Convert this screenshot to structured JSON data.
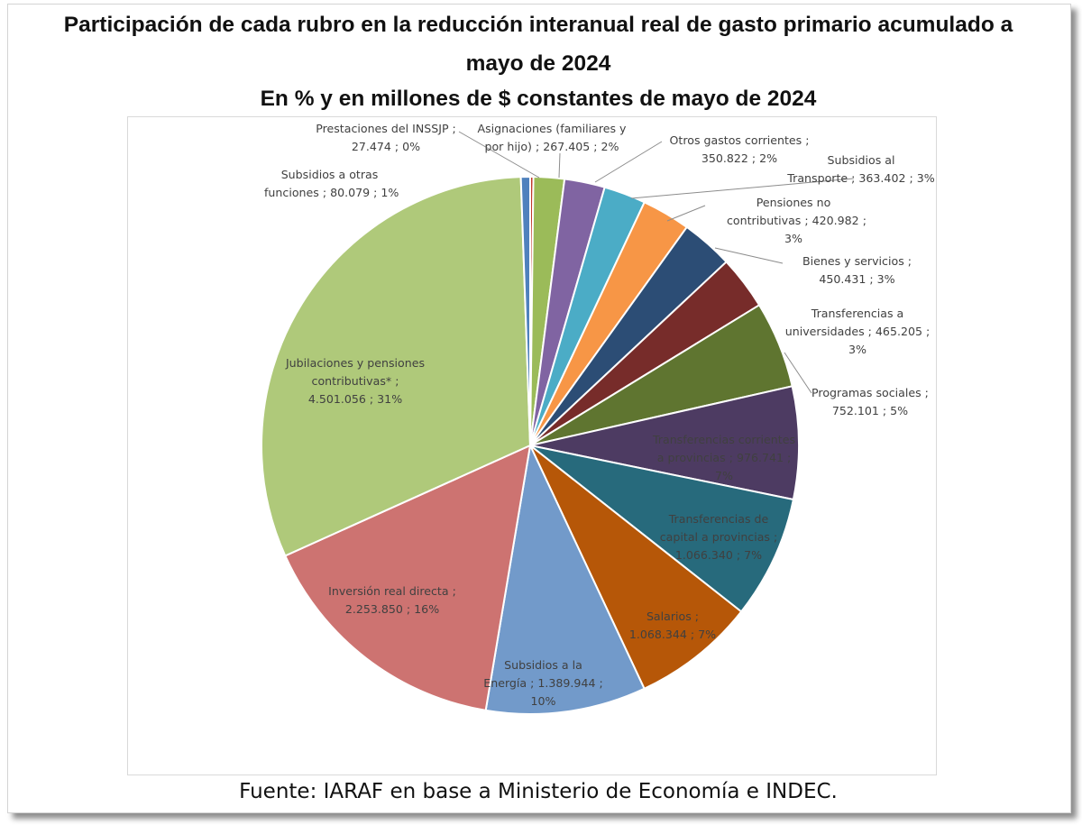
{
  "title": {
    "line1": "Participación de cada rubro en la reducción interanual real de gasto primario acumulado a",
    "line2": "mayo de 2024",
    "line3": "En % y en millones de $ constantes de mayo de 2024"
  },
  "source": "Fuente: IARAF en base a Ministerio de Economía e INDEC.",
  "chart_data": {
    "type": "pie",
    "title": "Participación de cada rubro en la reducción interanual real de gasto primario acumulado a mayo de 2024",
    "subtitle": "En % y en millones de $ constantes de mayo de 2024",
    "slices": [
      {
        "name": "Prestaciones del INSSJP",
        "value": 27474,
        "pct": "0%",
        "color": "#c0392b",
        "label_lines": [
          "Prestaciones del INSSJP ;",
          "27.474 ; 0%"
        ]
      },
      {
        "name": "Asignaciones (familiares y por hijo)",
        "value": 267405,
        "pct": "2%",
        "color": "#9bbb59",
        "label_lines": [
          "Asignaciones (familiares y",
          "por hijo) ; 267.405 ; 2%"
        ]
      },
      {
        "name": "Otros gastos corrientes",
        "value": 350822,
        "pct": "2%",
        "color": "#8064a2",
        "label_lines": [
          "Otros gastos corrientes ;",
          "350.822 ; 2%"
        ]
      },
      {
        "name": "Subsidios al Transporte",
        "value": 363402,
        "pct": "3%",
        "color": "#4bacc6",
        "label_lines": [
          "Subsidios al",
          "Transporte ; 363.402 ; 3%"
        ]
      },
      {
        "name": "Pensiones no contributivas",
        "value": 420982,
        "pct": "3%",
        "color": "#f79646",
        "label_lines": [
          "Pensiones no",
          "contributivas ; 420.982 ;",
          "3%"
        ]
      },
      {
        "name": "Bienes y servicios",
        "value": 450431,
        "pct": "3%",
        "color": "#2c4d75",
        "label_lines": [
          "Bienes y servicios ;",
          "450.431 ; 3%"
        ]
      },
      {
        "name": "Transferencias a universidades",
        "value": 465205,
        "pct": "3%",
        "color": "#772c2a",
        "label_lines": [
          "Transferencias a",
          "universidades ; 465.205 ;",
          "3%"
        ]
      },
      {
        "name": "Programas sociales",
        "value": 752101,
        "pct": "5%",
        "color": "#5f7530",
        "label_lines": [
          "Programas sociales ;",
          "752.101 ; 5%"
        ]
      },
      {
        "name": "Transferencias corrientes a provincias",
        "value": 976741,
        "pct": "7%",
        "color": "#4d3b62",
        "label_lines": [
          "Transferencias corrientes",
          "a provincias ; 976.741 ;",
          "7%"
        ]
      },
      {
        "name": "Transferencias de capital a provincias",
        "value": 1066340,
        "pct": "7%",
        "color": "#276a7c",
        "label_lines": [
          "Transferencias de",
          "capital a provincias ;",
          "1.066.340 ; 7%"
        ]
      },
      {
        "name": "Salarios",
        "value": 1068344,
        "pct": "7%",
        "color": "#b65708",
        "label_lines": [
          "Salarios ;",
          "1.068.344 ; 7%"
        ]
      },
      {
        "name": "Subsidios a la Energía",
        "value": 1389944,
        "pct": "10%",
        "color": "#729aca",
        "label_lines": [
          "Subsidios a la",
          "Energía ; 1.389.944 ;",
          "10%"
        ]
      },
      {
        "name": "Inversión real directa",
        "value": 2253850,
        "pct": "16%",
        "color": "#cd7371",
        "label_lines": [
          "Inversión real directa ;",
          "2.253.850 ; 16%"
        ]
      },
      {
        "name": "Jubilaciones y pensiones contributivas*",
        "value": 4501056,
        "pct": "31%",
        "color": "#afc97a",
        "label_lines": [
          "Jubilaciones y pensiones",
          "contributivas* ;",
          "4.501.056 ; 31%"
        ]
      },
      {
        "name": "Subsidios a otras funciones",
        "value": 80079,
        "pct": "1%",
        "color": "#4f81bd",
        "label_lines": [
          "Subsidios a otras",
          "funciones ; 80.079 ; 1%"
        ]
      }
    ]
  }
}
